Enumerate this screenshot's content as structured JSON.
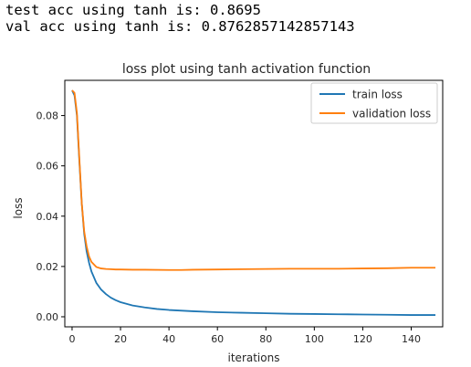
{
  "output": {
    "line1": "test acc using tanh is: 0.8695",
    "line2": "val acc using tanh is: 0.8762857142857143"
  },
  "chart_data": {
    "type": "line",
    "title": "loss plot using tanh activation function",
    "xlabel": "iterations",
    "ylabel": "loss",
    "xlim": [
      -3,
      153
    ],
    "ylim": [
      -0.004,
      0.094
    ],
    "xticks": [
      0,
      20,
      40,
      60,
      80,
      100,
      120,
      140
    ],
    "yticks": [
      0.0,
      0.02,
      0.04,
      0.06,
      0.08
    ],
    "ytick_labels": [
      "0.00",
      "0.02",
      "0.04",
      "0.06",
      "0.08"
    ],
    "grid": false,
    "legend": "top-right",
    "series": [
      {
        "name": "train loss",
        "color": "#1f77b4",
        "x": [
          0,
          1,
          2,
          3,
          4,
          5,
          6,
          7,
          8,
          10,
          12,
          14,
          16,
          18,
          20,
          25,
          30,
          35,
          40,
          50,
          60,
          70,
          80,
          90,
          100,
          110,
          120,
          130,
          140,
          150
        ],
        "y": [
          0.09,
          0.088,
          0.08,
          0.062,
          0.045,
          0.033,
          0.026,
          0.0215,
          0.018,
          0.0135,
          0.0108,
          0.009,
          0.0076,
          0.0066,
          0.0058,
          0.0045,
          0.0037,
          0.0031,
          0.0027,
          0.0022,
          0.0018,
          0.0016,
          0.0014,
          0.0012,
          0.0011,
          0.001,
          0.0009,
          0.0008,
          0.0007,
          0.0007
        ]
      },
      {
        "name": "validation loss",
        "color": "#ff7f0e",
        "x": [
          0,
          1,
          2,
          3,
          4,
          5,
          6,
          7,
          8,
          10,
          12,
          14,
          16,
          18,
          20,
          25,
          30,
          40,
          45,
          50,
          60,
          70,
          80,
          90,
          100,
          110,
          120,
          130,
          140,
          150
        ],
        "y": [
          0.09,
          0.089,
          0.081,
          0.063,
          0.045,
          0.034,
          0.028,
          0.024,
          0.0218,
          0.0198,
          0.0192,
          0.019,
          0.0189,
          0.0188,
          0.0188,
          0.0187,
          0.0187,
          0.0186,
          0.0186,
          0.0187,
          0.0188,
          0.0189,
          0.019,
          0.0191,
          0.0191,
          0.0191,
          0.0192,
          0.0193,
          0.0195,
          0.0195
        ]
      }
    ]
  }
}
